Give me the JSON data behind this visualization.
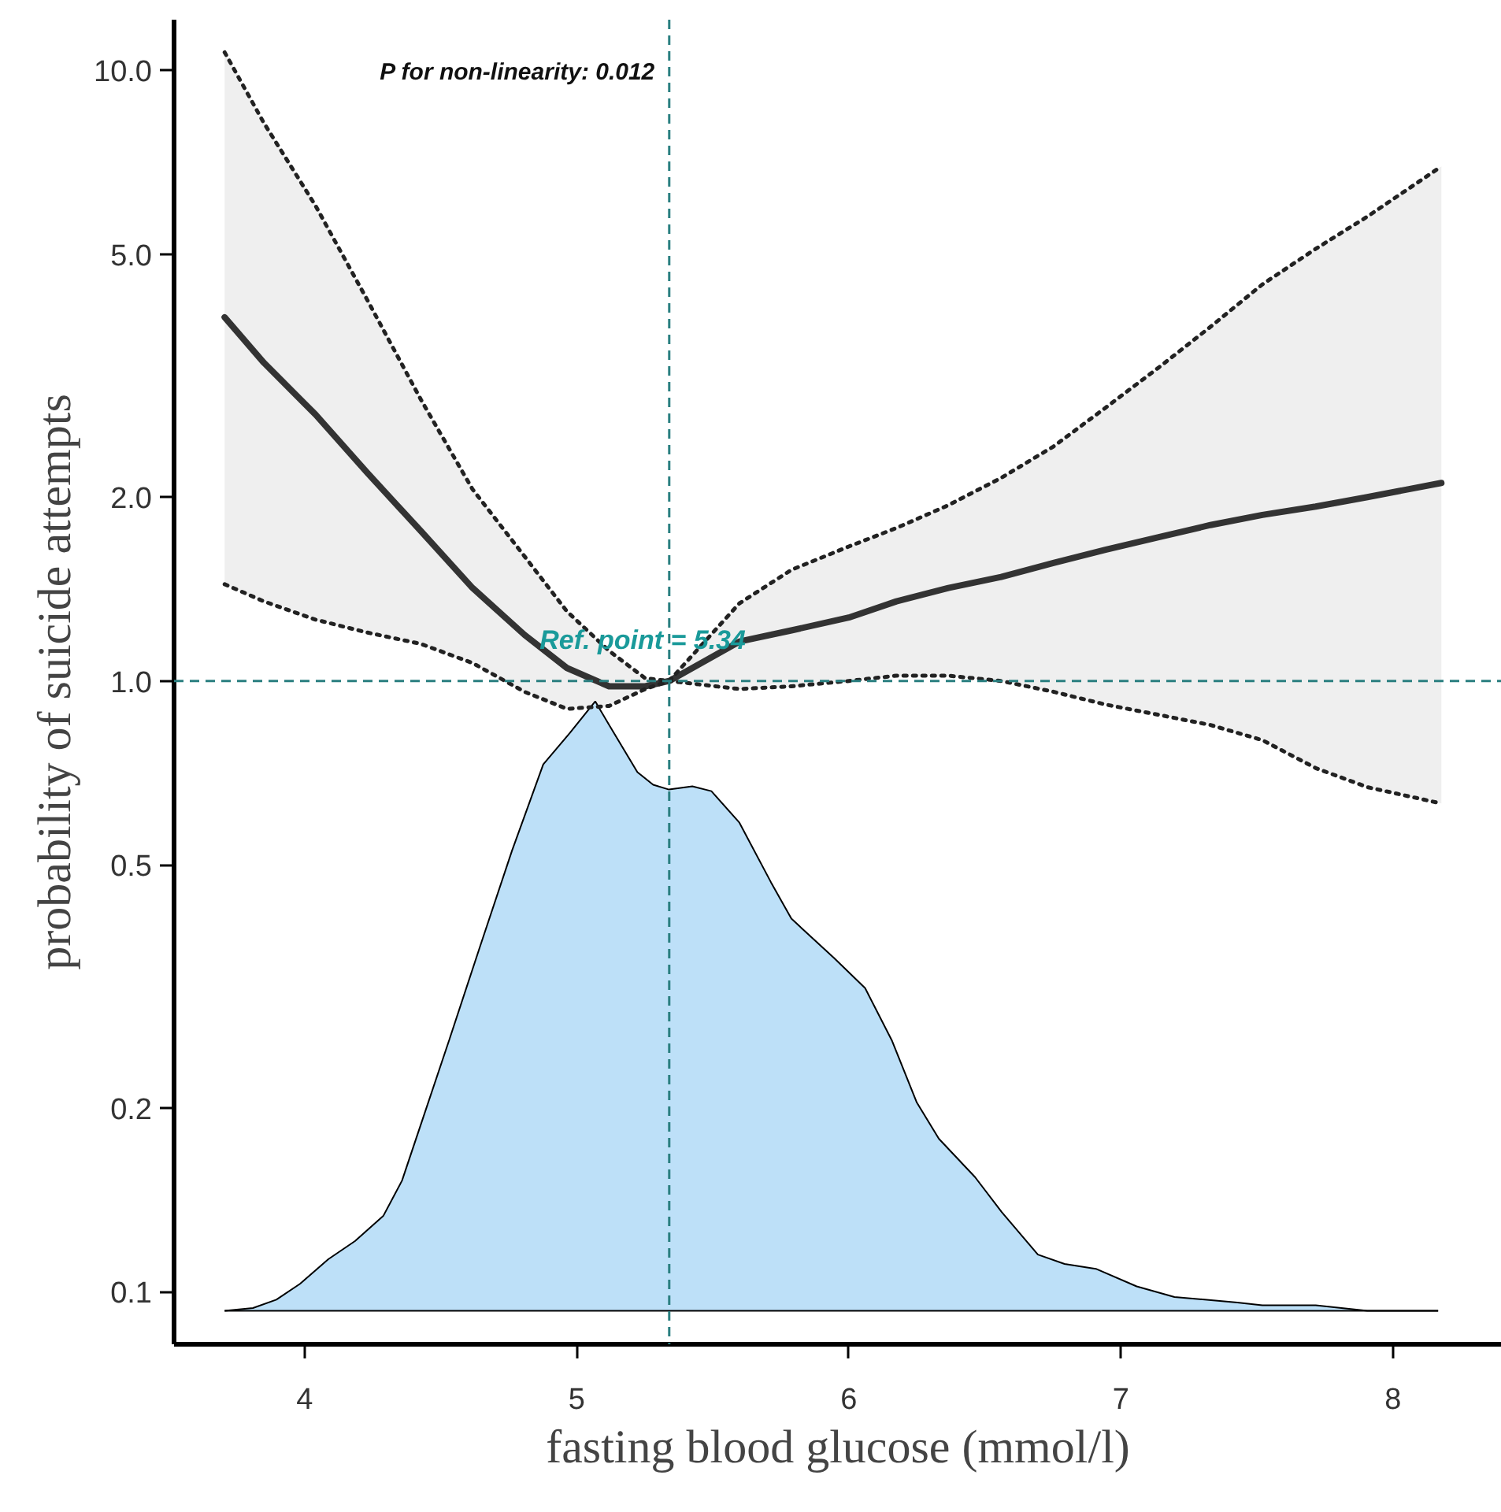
{
  "chart_data": {
    "type": "line",
    "xlabel": "fasting blood glucose (mmol/l)",
    "ylabel": "probability of suicide attempts",
    "annotations": [
      "P for non-linearity: 0.012",
      "Ref. point = 5.34"
    ],
    "log": "y",
    "grid": false,
    "xlim": [
      3.52,
      8.4
    ],
    "xticks": [
      4,
      5,
      6,
      7,
      8
    ],
    "ylim": [
      0.082,
      12.1
    ],
    "yticks": [
      {
        "value": 10,
        "label": "10.0"
      },
      {
        "value": 5,
        "label": "5.0"
      },
      {
        "value": 2,
        "label": "2.0"
      },
      {
        "value": 1,
        "label": "1.0"
      },
      0.5,
      0.2,
      0.1
    ],
    "ref_lines": [
      {
        "axis": "x",
        "value": 5.34,
        "color": "#2a7f80",
        "line_style": "dashed"
      },
      {
        "axis": "y",
        "value": 1,
        "color": "#2a7f80",
        "line_style": "dashed"
      }
    ],
    "series": [
      {
        "type": "area",
        "color": "#bde0f8",
        "x": [
          3.706,
          3.81,
          3.896,
          3.983,
          4.087,
          4.185,
          4.289,
          4.358,
          4.415,
          4.531,
          4.646,
          4.762,
          4.877,
          4.975,
          5.068,
          5.119,
          5.223,
          5.281,
          5.339,
          5.425,
          5.495,
          5.598,
          5.714,
          5.789,
          5.945,
          6.06,
          6.158,
          6.25,
          6.331,
          6.464,
          6.562,
          6.695,
          6.793,
          6.908,
          7.058,
          7.197,
          7.428,
          7.52,
          7.716,
          7.906,
          8.166
        ],
        "values": [
          0.093,
          0.094,
          0.097,
          0.103,
          0.113,
          0.121,
          0.133,
          0.152,
          0.181,
          0.258,
          0.369,
          0.527,
          0.73,
          0.822,
          0.926,
          0.847,
          0.709,
          0.676,
          0.664,
          0.672,
          0.66,
          0.586,
          0.468,
          0.408,
          0.352,
          0.314,
          0.258,
          0.204,
          0.178,
          0.154,
          0.135,
          0.115,
          0.111,
          0.109,
          0.102,
          0.098,
          0.096,
          0.095,
          0.095,
          0.093,
          0.093
        ]
      },
      {
        "color": "#333333",
        "line_style": "solid",
        "x": [
          3.706,
          3.85,
          4.04,
          4.231,
          4.427,
          4.617,
          4.808,
          4.964,
          5.119,
          5.252,
          5.34,
          5.598,
          5.789,
          6.0,
          6.175,
          6.366,
          6.56,
          6.752,
          6.943,
          7.139,
          7.329,
          7.52,
          7.716,
          7.906,
          8.178
        ],
        "values": [
          3.94,
          3.32,
          2.73,
          2.19,
          1.76,
          1.42,
          1.19,
          1.05,
          0.98,
          0.98,
          1.0,
          1.16,
          1.21,
          1.27,
          1.35,
          1.42,
          1.48,
          1.56,
          1.64,
          1.72,
          1.8,
          1.87,
          1.93,
          2.0,
          2.11
        ],
        "upper": [
          10.7,
          8.2,
          6.0,
          4.2,
          2.89,
          2.06,
          1.6,
          1.3,
          1.12,
          1.01,
          1.0,
          1.34,
          1.52,
          1.66,
          1.78,
          1.94,
          2.15,
          2.42,
          2.8,
          3.26,
          3.8,
          4.46,
          5.1,
          5.76,
          6.96
        ],
        "lower": [
          1.44,
          1.35,
          1.26,
          1.2,
          1.15,
          1.07,
          0.96,
          0.9,
          0.91,
          0.97,
          1.0,
          0.97,
          0.98,
          1.0,
          1.02,
          1.02,
          1.0,
          0.96,
          0.915,
          0.88,
          0.847,
          0.8,
          0.72,
          0.67,
          0.63
        ]
      },
      {
        "type": "line",
        "color": "#222222",
        "line_style": "dotted",
        "x": [
          3.706,
          3.85,
          4.04,
          4.231,
          4.427,
          4.617,
          4.808,
          4.964,
          5.119,
          5.252,
          5.34,
          5.598,
          5.789,
          6.0,
          6.175,
          6.366,
          6.56,
          6.752,
          6.943,
          7.139,
          7.329,
          7.52,
          7.716,
          7.906,
          8.178
        ],
        "values": [
          10.7,
          8.2,
          6.0,
          4.2,
          2.89,
          2.06,
          1.6,
          1.3,
          1.12,
          1.01,
          1.0,
          1.34,
          1.52,
          1.66,
          1.78,
          1.94,
          2.15,
          2.42,
          2.8,
          3.26,
          3.8,
          4.46,
          5.1,
          5.76,
          6.96
        ]
      },
      {
        "type": "line",
        "color": "#222222",
        "line_style": "dotted",
        "x": [
          3.706,
          3.85,
          4.04,
          4.231,
          4.427,
          4.617,
          4.808,
          4.964,
          5.119,
          5.252,
          5.34,
          5.598,
          5.789,
          6.0,
          6.175,
          6.366,
          6.56,
          6.752,
          6.943,
          7.139,
          7.329,
          7.52,
          7.716,
          7.906,
          8.178
        ],
        "values": [
          1.44,
          1.35,
          1.26,
          1.2,
          1.15,
          1.07,
          0.96,
          0.9,
          0.91,
          0.97,
          1.0,
          0.97,
          0.98,
          1.0,
          1.02,
          1.02,
          1.0,
          0.96,
          0.915,
          0.88,
          0.847,
          0.8,
          0.72,
          0.67,
          0.63
        ]
      }
    ]
  }
}
